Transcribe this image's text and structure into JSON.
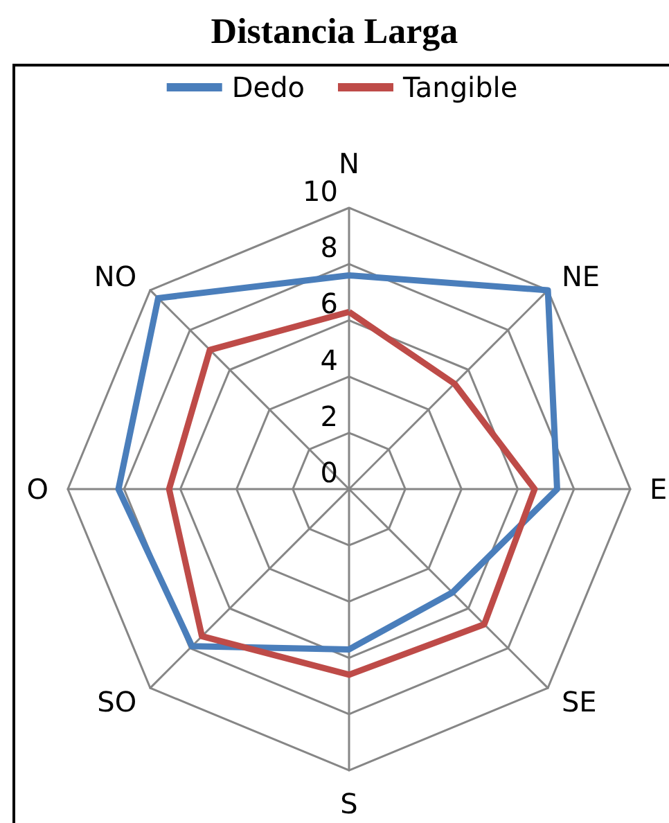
{
  "chart_data": {
    "type": "radar",
    "title": "Distancia Larga",
    "categories": [
      "N",
      "NE",
      "E",
      "SE",
      "S",
      "SO",
      "O",
      "NO"
    ],
    "series": [
      {
        "name": "Dedo",
        "color": "#4a7ebb",
        "values": [
          7.6,
          10,
          7.4,
          5.2,
          5.7,
          7.9,
          8.2,
          9.6
        ]
      },
      {
        "name": "Tangible",
        "color": "#be4b48",
        "values": [
          6.3,
          5.3,
          6.6,
          6.8,
          6.6,
          7.4,
          6.4,
          7.0
        ]
      }
    ],
    "ylim": [
      0,
      10
    ],
    "yticks": [
      0,
      2,
      4,
      6,
      8,
      10
    ],
    "grid": true,
    "legend": "top",
    "marker": "none",
    "line_style": "solid"
  }
}
